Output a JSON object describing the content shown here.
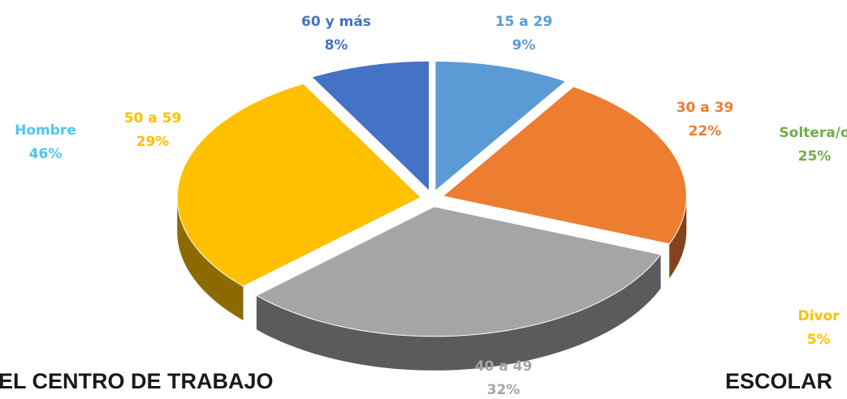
{
  "chart_data": [
    {
      "type": "pie",
      "title": "EL CENTRO DE TRABAJO",
      "categories": [
        "Hombre"
      ],
      "values": [
        46
      ],
      "value_labels": [
        "46%"
      ],
      "colors": [
        "#4fc6ee"
      ]
    },
    {
      "type": "pie3d",
      "categories": [
        "15 a 29",
        "30 a 39",
        "40 a 49",
        "50 a 59",
        "60 y más"
      ],
      "values": [
        9,
        22,
        32,
        29,
        8
      ],
      "value_labels": [
        "9%",
        "22%",
        "32%",
        "29%",
        "8%"
      ],
      "colors": [
        "#5b9bd5",
        "#ed7d31",
        "#a5a5a5",
        "#ffc000",
        "#4472c4"
      ]
    },
    {
      "type": "pie",
      "title": "ESCOLAR",
      "categories": [
        "Soltera/o",
        "Divor"
      ],
      "values": [
        25,
        5
      ],
      "value_labels": [
        "25%",
        "5%"
      ],
      "colors": [
        "#70ad47",
        "#ffc000"
      ]
    }
  ]
}
